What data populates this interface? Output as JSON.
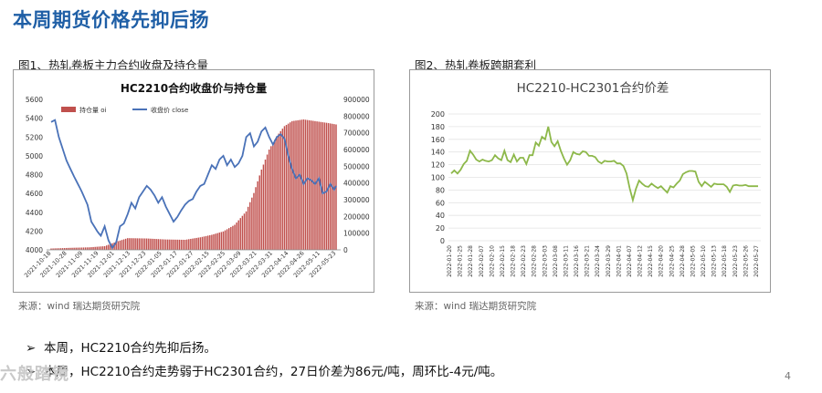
{
  "slide": {
    "title": "本周期货价格先抑后扬",
    "fig1_caption": "图1、热轧卷板主力合约收盘及持仓量",
    "fig2_caption": "图2、热轧卷板跨期套利",
    "source1": "来源：wind   瑞达期货研究院",
    "source2": "来源：wind   瑞达期货研究院",
    "bullets": [
      "本周，HC2210合约先抑后扬。",
      "本周，HC2210合约走势弱于HC2301合约，27日价差为86元/吨，周环比-4元/吨。"
    ],
    "bullet_marker": "➢",
    "page_number": "4",
    "watermark": "六般踏镜"
  },
  "colors": {
    "title": "#1f5fa6",
    "bar": "#c0504d",
    "price_line": "#4a72b8",
    "spread_line": "#8db84a"
  },
  "chart_data": [
    {
      "type": "bar+line",
      "title": "HC2210合约收盘价与持仓量",
      "legend": [
        "持仓量 oi",
        "收盘价 close"
      ],
      "legend_position": "top",
      "y_left_ticks": [
        "4000",
        "4200",
        "4400",
        "4600",
        "4800",
        "5000",
        "5200",
        "5400",
        "5600"
      ],
      "y_right_ticks": [
        "0",
        "100000",
        "200000",
        "300000",
        "400000",
        "500000",
        "600000",
        "700000",
        "800000",
        "900000"
      ],
      "ylim_left": [
        4000,
        5600
      ],
      "ylim_right": [
        0,
        900000
      ],
      "x_ticks": [
        "2021-10-18",
        "2021-10-28",
        "2021-11-09",
        "2021-11-19",
        "2021-12-01",
        "2021-12-13",
        "2021-12-23",
        "2022-01-05",
        "2022-01-17",
        "2022-01-27",
        "2022-02-15",
        "2022-02-25",
        "2022-03-09",
        "2022-03-21",
        "2022-03-31",
        "2022-04-14",
        "2022-04-26",
        "2022-05-11",
        "2022-05-23"
      ],
      "n_points": 150,
      "oi_keypoints": [
        [
          0,
          8000
        ],
        [
          10,
          12000
        ],
        [
          20,
          15000
        ],
        [
          28,
          22000
        ],
        [
          34,
          48000
        ],
        [
          40,
          70000
        ],
        [
          50,
          68000
        ],
        [
          60,
          62000
        ],
        [
          70,
          60000
        ],
        [
          78,
          75000
        ],
        [
          84,
          90000
        ],
        [
          90,
          110000
        ],
        [
          96,
          150000
        ],
        [
          102,
          230000
        ],
        [
          106,
          340000
        ],
        [
          110,
          480000
        ],
        [
          114,
          600000
        ],
        [
          118,
          680000
        ],
        [
          122,
          740000
        ],
        [
          126,
          770000
        ],
        [
          132,
          780000
        ],
        [
          138,
          770000
        ],
        [
          144,
          760000
        ],
        [
          149,
          750000
        ]
      ],
      "close_keypoints": [
        [
          0,
          5360
        ],
        [
          2,
          5380
        ],
        [
          4,
          5200
        ],
        [
          8,
          4950
        ],
        [
          12,
          4780
        ],
        [
          16,
          4620
        ],
        [
          19,
          4480
        ],
        [
          21,
          4300
        ],
        [
          24,
          4200
        ],
        [
          26,
          4150
        ],
        [
          28,
          4250
        ],
        [
          30,
          4100
        ],
        [
          32,
          4020
        ],
        [
          34,
          4080
        ],
        [
          36,
          4250
        ],
        [
          38,
          4280
        ],
        [
          40,
          4380
        ],
        [
          42,
          4500
        ],
        [
          44,
          4440
        ],
        [
          46,
          4560
        ],
        [
          48,
          4620
        ],
        [
          50,
          4680
        ],
        [
          52,
          4640
        ],
        [
          54,
          4580
        ],
        [
          56,
          4500
        ],
        [
          58,
          4560
        ],
        [
          60,
          4460
        ],
        [
          62,
          4380
        ],
        [
          64,
          4300
        ],
        [
          66,
          4350
        ],
        [
          68,
          4420
        ],
        [
          70,
          4480
        ],
        [
          72,
          4520
        ],
        [
          74,
          4540
        ],
        [
          76,
          4620
        ],
        [
          78,
          4680
        ],
        [
          80,
          4700
        ],
        [
          82,
          4800
        ],
        [
          84,
          4900
        ],
        [
          86,
          4860
        ],
        [
          88,
          4960
        ],
        [
          90,
          5000
        ],
        [
          92,
          4900
        ],
        [
          94,
          4960
        ],
        [
          96,
          4880
        ],
        [
          98,
          4920
        ],
        [
          100,
          5000
        ],
        [
          102,
          5200
        ],
        [
          104,
          5240
        ],
        [
          106,
          5100
        ],
        [
          108,
          5150
        ],
        [
          110,
          5260
        ],
        [
          112,
          5300
        ],
        [
          114,
          5200
        ],
        [
          116,
          5120
        ],
        [
          118,
          5200
        ],
        [
          120,
          5230
        ],
        [
          122,
          5180
        ],
        [
          124,
          5000
        ],
        [
          126,
          4860
        ],
        [
          128,
          4760
        ],
        [
          130,
          4800
        ],
        [
          132,
          4700
        ],
        [
          134,
          4760
        ],
        [
          136,
          4740
        ],
        [
          138,
          4700
        ],
        [
          140,
          4760
        ],
        [
          142,
          4600
        ],
        [
          144,
          4620
        ],
        [
          146,
          4700
        ],
        [
          148,
          4640
        ],
        [
          149,
          4680
        ]
      ]
    },
    {
      "type": "line",
      "title": "HC2210-HC2301合约价差",
      "series_name": "HC2210-HC2301",
      "ylim": [
        0,
        200
      ],
      "y_ticks": [
        "0",
        "20",
        "40",
        "60",
        "80",
        "100",
        "120",
        "140",
        "160",
        "180",
        "200"
      ],
      "x_ticks": [
        "2022-01-20",
        "2022-01-25",
        "2022-01-28",
        "2022-02-07",
        "2022-02-10",
        "2022-02-15",
        "2022-02-18",
        "2022-02-23",
        "2022-02-28",
        "2022-03-03",
        "2022-03-08",
        "2022-03-11",
        "2022-03-16",
        "2022-03-21",
        "2022-03-24",
        "2022-03-29",
        "2022-04-01",
        "2022-04-07",
        "2022-04-12",
        "2022-04-15",
        "2022-04-20",
        "2022-04-25",
        "2022-04-28",
        "2022-05-05",
        "2022-05-10",
        "2022-05-13",
        "2022-05-18",
        "2022-05-23",
        "2022-05-26",
        "2022-05-27"
      ],
      "values": [
        106,
        111,
        106,
        112,
        121,
        126,
        142,
        136,
        128,
        125,
        128,
        126,
        125,
        127,
        135,
        130,
        127,
        142,
        127,
        124,
        136,
        125,
        131,
        131,
        121,
        135,
        135,
        155,
        150,
        164,
        160,
        180,
        156,
        149,
        157,
        142,
        130,
        120,
        127,
        140,
        137,
        136,
        141,
        140,
        134,
        134,
        132,
        125,
        122,
        126,
        125,
        125,
        126,
        122,
        122,
        118,
        106,
        83,
        64,
        82,
        95,
        90,
        86,
        85,
        90,
        86,
        83,
        86,
        81,
        76,
        86,
        84,
        90,
        95,
        105,
        108,
        110,
        110,
        109,
        93,
        86,
        93,
        89,
        85,
        90,
        89,
        89,
        89,
        85,
        77,
        87,
        88,
        87,
        87,
        88,
        86,
        86,
        86,
        86
      ]
    }
  ]
}
